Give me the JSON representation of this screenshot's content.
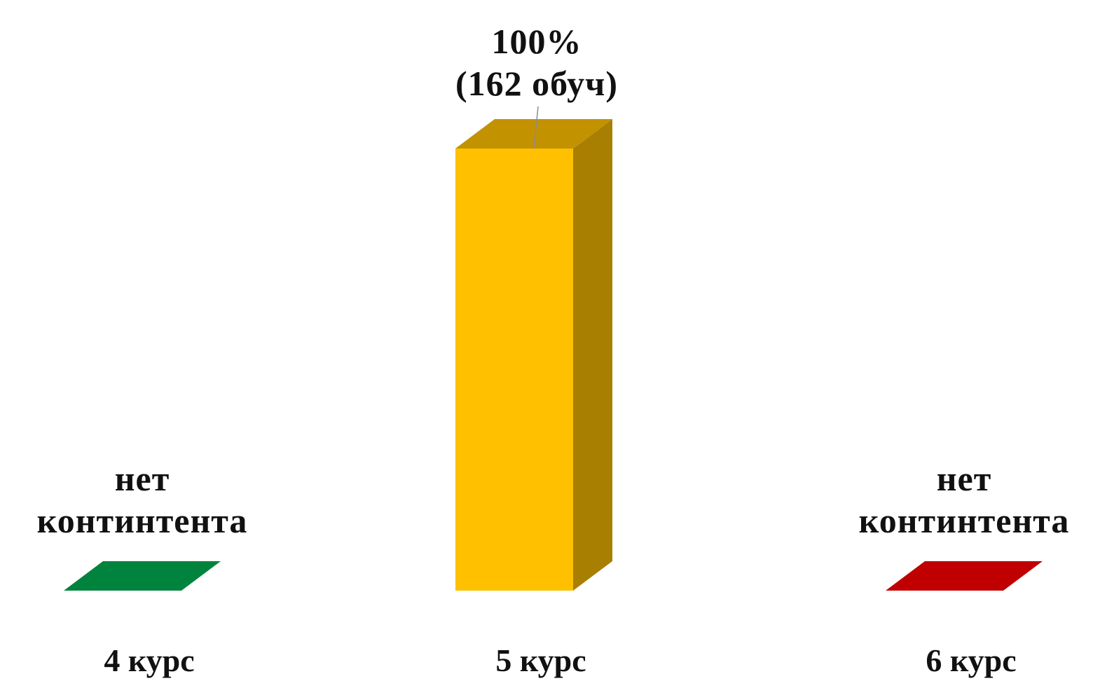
{
  "chart_data": {
    "type": "bar",
    "style": "3d-column",
    "categories": [
      "4 курс",
      "5 курс",
      "6 курс"
    ],
    "values": [
      0,
      100,
      0
    ],
    "ylim": [
      0,
      100
    ],
    "grid": false,
    "legend": "none",
    "colors": [
      "#00843D",
      "#FFC000",
      "#C00000"
    ],
    "data_labels": [
      [
        "нет",
        "континтента"
      ],
      [
        "100%",
        "(162 обуч)"
      ],
      [
        "нет",
        "континтента"
      ]
    ]
  }
}
